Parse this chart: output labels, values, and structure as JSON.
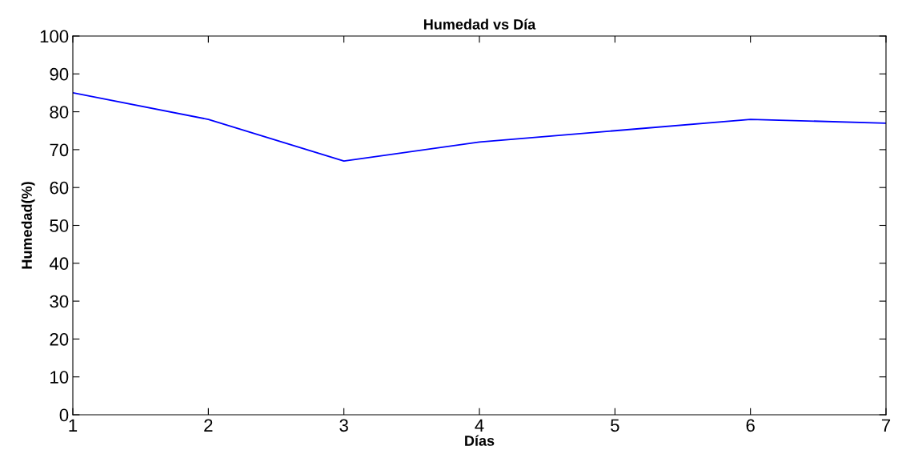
{
  "chart_data": {
    "type": "line",
    "title": "Humedad vs Día",
    "xlabel": "Días",
    "ylabel": "Humedad(%)",
    "x": [
      1,
      2,
      3,
      4,
      5,
      6,
      7
    ],
    "series": [
      {
        "color": "#0000ff",
        "values": [
          85,
          78,
          67,
          72,
          75,
          78,
          77
        ]
      }
    ],
    "xlim": [
      1,
      7
    ],
    "xticks": [
      1,
      2,
      3,
      4,
      5,
      6,
      7
    ],
    "ylim": [
      0,
      100
    ],
    "yticks": [
      0,
      10,
      20,
      30,
      40,
      50,
      60,
      70,
      80,
      90,
      100
    ],
    "grid": false,
    "legend": false,
    "marker": "none",
    "line_style": "solid"
  }
}
